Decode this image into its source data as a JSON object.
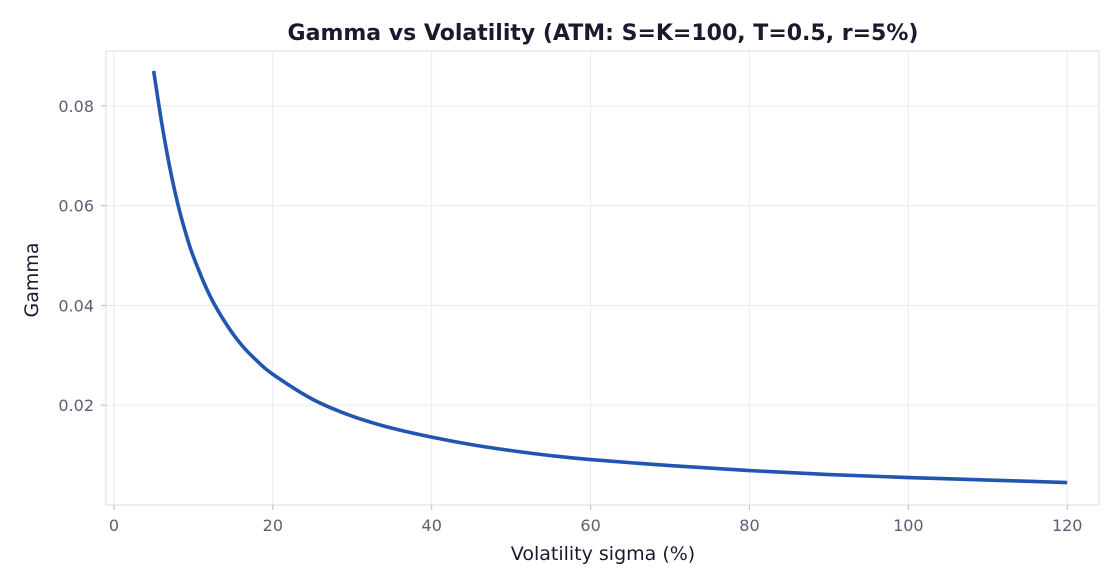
{
  "chart_data": {
    "type": "line",
    "title": "Gamma vs Volatility  (ATM: S=K=100, T=0.5, r=5%)",
    "xlabel": "Volatility sigma (%)",
    "ylabel": "Gamma",
    "xlim": [
      -1,
      124
    ],
    "ylim": [
      0,
      0.091
    ],
    "xticks": [
      0,
      20,
      40,
      60,
      80,
      100,
      120
    ],
    "xtick_labels": [
      "0",
      "20",
      "40",
      "60",
      "80",
      "100",
      "120"
    ],
    "yticks": [
      0.02,
      0.04,
      0.06,
      0.08
    ],
    "ytick_labels": [
      "0.02",
      "0.04",
      "0.06",
      "0.08"
    ],
    "grid": true,
    "series": [
      {
        "color": "#2255b0",
        "x": [
          5,
          6,
          7,
          8,
          9,
          10,
          12,
          14,
          16,
          18,
          20,
          25,
          30,
          35,
          40,
          45,
          50,
          55,
          60,
          70,
          80,
          90,
          100,
          110,
          120
        ],
        "y": [
          0.087,
          0.0767,
          0.0679,
          0.0606,
          0.0547,
          0.0498,
          0.0422,
          0.0366,
          0.0322,
          0.0289,
          0.0262,
          0.0212,
          0.0178,
          0.0154,
          0.0136,
          0.0121,
          0.0109,
          0.0099,
          0.0091,
          0.0079,
          0.0069,
          0.0061,
          0.0055,
          0.005,
          0.0045
        ]
      }
    ]
  }
}
